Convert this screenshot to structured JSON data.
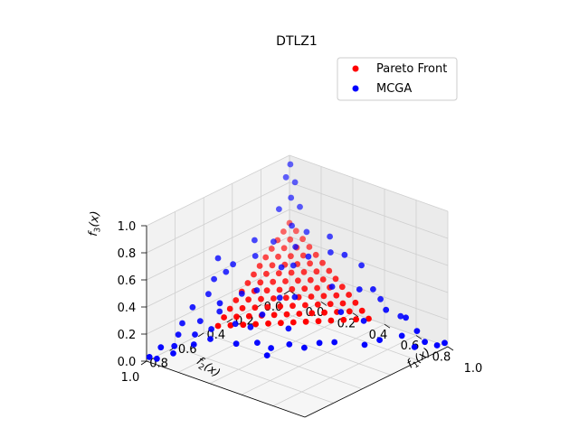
{
  "chart_data": {
    "type": "scatter",
    "title": "DTLZ1",
    "axes": {
      "x": {
        "label_main": "f",
        "label_sub": "1",
        "label_tail": "(x)",
        "range": [
          0,
          1
        ],
        "ticks": [
          "0.0",
          "0.2",
          "0.4",
          "0.6",
          "0.8",
          "1.0"
        ]
      },
      "y": {
        "label_main": "f",
        "label_sub": "2",
        "label_tail": "(x)",
        "range": [
          0,
          1
        ],
        "ticks": [
          "0.0",
          "0.2",
          "0.4",
          "0.6",
          "0.8",
          "1.0"
        ]
      },
      "z": {
        "label_main": "f",
        "label_sub": "3",
        "label_tail": "(x)",
        "range": [
          0,
          1
        ],
        "ticks": [
          "0.0",
          "0.2",
          "0.4",
          "0.6",
          "0.8",
          "1.0"
        ]
      }
    },
    "grid": true,
    "legend": {
      "placement": "top-right"
    },
    "series": [
      {
        "name": "Pareto Front",
        "color": "#ff0000",
        "surface": "f1 + f2 + f3 = 0.5",
        "grid_divisions": 12,
        "points": []
      },
      {
        "name": "MCGA",
        "color": "#0000ff",
        "points": [
          [
            0.05,
            0.05,
            0.98
          ],
          [
            0.05,
            0.08,
            0.9
          ],
          [
            0.08,
            0.05,
            0.86
          ],
          [
            0.1,
            0.1,
            0.78
          ],
          [
            0.06,
            0.14,
            0.7
          ],
          [
            0.12,
            0.06,
            0.7
          ],
          [
            0.18,
            0.08,
            0.55
          ],
          [
            0.08,
            0.2,
            0.5
          ],
          [
            0.2,
            0.18,
            0.5
          ],
          [
            0.15,
            0.15,
            0.62
          ],
          [
            0.3,
            0.05,
            0.55
          ],
          [
            0.05,
            0.3,
            0.55
          ],
          [
            0.25,
            0.25,
            0.42
          ],
          [
            0.1,
            0.35,
            0.48
          ],
          [
            0.35,
            0.1,
            0.48
          ],
          [
            0.0,
            0.5,
            0.5
          ],
          [
            0.02,
            0.55,
            0.38
          ],
          [
            0.03,
            0.6,
            0.3
          ],
          [
            0.02,
            0.7,
            0.25
          ],
          [
            0.0,
            0.75,
            0.15
          ],
          [
            0.05,
            0.68,
            0.15
          ],
          [
            0.1,
            0.6,
            0.2
          ],
          [
            0.08,
            0.75,
            0.1
          ],
          [
            0.12,
            0.68,
            0.12
          ],
          [
            0.02,
            0.8,
            0.1
          ],
          [
            0.04,
            0.85,
            0.05
          ],
          [
            0.0,
            0.9,
            0.05
          ],
          [
            0.02,
            0.95,
            0.0
          ],
          [
            0.0,
            0.98,
            0.02
          ],
          [
            0.06,
            0.88,
            0.02
          ],
          [
            0.1,
            0.78,
            0.05
          ],
          [
            0.15,
            0.72,
            0.08
          ],
          [
            0.12,
            0.62,
            0.28
          ],
          [
            0.2,
            0.6,
            0.15
          ],
          [
            0.25,
            0.55,
            0.12
          ],
          [
            0.05,
            0.5,
            0.42
          ],
          [
            0.15,
            0.5,
            0.3
          ],
          [
            0.2,
            0.45,
            0.32
          ],
          [
            0.28,
            0.5,
            0.2
          ],
          [
            0.3,
            0.4,
            0.28
          ],
          [
            0.32,
            0.58,
            0.05
          ],
          [
            0.4,
            0.45,
            0.12
          ],
          [
            0.5,
            0.45,
            0.02
          ],
          [
            0.45,
            0.5,
            0.05
          ],
          [
            0.38,
            0.55,
            0.02
          ],
          [
            0.6,
            0.35,
            0.05
          ],
          [
            0.55,
            0.25,
            0.2
          ],
          [
            0.65,
            0.2,
            0.15
          ],
          [
            0.7,
            0.1,
            0.2
          ],
          [
            0.75,
            0.2,
            0.05
          ],
          [
            0.8,
            0.1,
            0.05
          ],
          [
            0.85,
            0.05,
            0.08
          ],
          [
            0.9,
            0.05,
            0.02
          ],
          [
            0.95,
            0.02,
            0.0
          ],
          [
            0.98,
            0.0,
            0.02
          ],
          [
            0.88,
            0.1,
            0.0
          ],
          [
            0.7,
            0.25,
            0.02
          ],
          [
            0.6,
            0.08,
            0.3
          ],
          [
            0.5,
            0.05,
            0.42
          ],
          [
            0.55,
            0.12,
            0.3
          ],
          [
            0.45,
            0.2,
            0.32
          ],
          [
            0.42,
            0.08,
            0.48
          ],
          [
            0.3,
            0.2,
            0.48
          ],
          [
            0.62,
            0.05,
            0.22
          ],
          [
            0.72,
            0.02,
            0.12
          ],
          [
            0.35,
            0.35,
            0.28
          ],
          [
            0.25,
            0.65,
            0.05
          ],
          [
            0.4,
            0.6,
            0.0
          ],
          [
            0.05,
            0.45,
            0.45
          ],
          [
            0.22,
            0.3,
            0.42
          ],
          [
            0.55,
            0.4,
            0.05
          ],
          [
            0.78,
            0.05,
            0.15
          ]
        ]
      }
    ]
  }
}
